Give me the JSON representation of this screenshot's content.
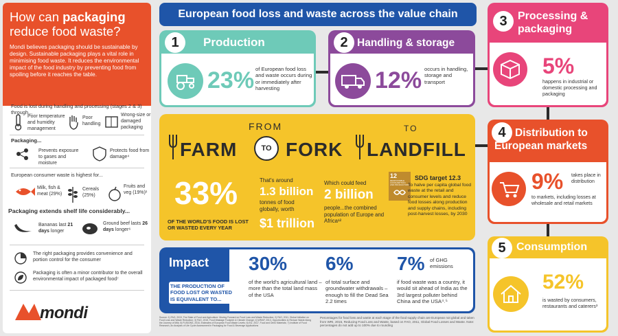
{
  "sidebar": {
    "title_pre": "How can ",
    "title_bold": "packaging",
    "title_post": "reduce food waste?",
    "intro": "Mondi believes packaging should be sustainable by design. Sustainable packaging plays a vital role in minimising food waste. It reduces the environmental impact of the food industry by preventing food from spoiling before it reaches the table.",
    "lost_heading": "Food is lost during handling and processing (stages 2 & 3) through...",
    "causes": [
      "Poor temperature and humidity management",
      "Poor handling",
      "Wrong-size or damaged packaging"
    ],
    "packaging_heading": "Packaging...",
    "packaging_items": [
      "Prevents exposure to gases and moisture",
      "Protects food from damage⁴"
    ],
    "consumer_heading": "European consumer waste is highest for...",
    "consumer_items": [
      "Milk, fish & meat (29%)",
      "Cereals (25%)",
      "Fruits and veg (19%)¹"
    ],
    "shelf_heading": "Packaging extends shelf life considerably...",
    "shelf_banana_pre": "Bananas last ",
    "shelf_banana_bold": "21 days",
    "shelf_banana_post": " longer",
    "shelf_beef_pre": "Ground beef lasts ",
    "shelf_beef_bold": "26 days",
    "shelf_beef_post": " longer⁶",
    "note1": "The right packaging provides convenience and portion control for the consumer",
    "note2": "Packaging is often a minor contributor to the overall environmental impact of packaged food⁷",
    "logo": "mondi"
  },
  "main_title": "European food loss and waste across the value chain",
  "stage1": {
    "num": "1",
    "title": "Production",
    "pct": "23%",
    "text": "of European food loss and waste occurs during or immediately after harvesting"
  },
  "stage2": {
    "num": "2",
    "title": "Handling & storage",
    "pct": "12%",
    "text": "occurs in handling, storage and transport"
  },
  "stage3": {
    "num": "3",
    "title": "Processing & packaging",
    "pct": "5%",
    "text": "happens in industrial or domestic processing and packaging"
  },
  "stage4": {
    "num": "4",
    "title": "Distribution to European markets",
    "pct": "9%",
    "text1": "takes place in distribution",
    "text2": "to markets, including losses at wholesale and retail markets"
  },
  "stage5": {
    "num": "5",
    "title": "Consumption",
    "pct": "52%",
    "text": "is wasted by consumers, restaurants and caterers³"
  },
  "farm": {
    "from": "FROM",
    "farm": "FARM",
    "to": "TO",
    "fork": "FORK",
    "to2": "TO",
    "landfill": "LANDFILL",
    "pct": "33%",
    "pct_caption": "OF THE WORLD'S FOOD IS LOST OR WASTED EVERY YEAR",
    "around": "That's around",
    "billion": "1.3 billion",
    "tonnes": "tonnes of food globally, worth",
    "trillion": "$1 trillion",
    "feed": "Which could feed",
    "feed_num": "2 billion",
    "feed_text": "people...the combined population of Europe and Africa¹²",
    "sdg_num": "12",
    "sdg_label": "RESPONSIBLE CONSUMPTION AND PRODUCTION",
    "sdg_title": "SDG target 12.3",
    "sdg_text": "To halve per capita global food waste at the retail and consumer levels and reduce food losses along production and supply chains, including post-harvest losses, by 2030"
  },
  "impact": {
    "title": "Impact",
    "lead": "THE PRODUCTION OF FOOD LOST OR WASTED IS EQUIVALENT TO...",
    "p1": "30%",
    "t1": "of the world's agricultural land – more than the total land mass of the USA",
    "p2": "6%",
    "t2": "of total surface and groundwater withdrawals – enough to fill the Dead Sea 2.2 times",
    "p3": "7%",
    "p3s": "of GHG emissions",
    "t3": "if food waste was a country, it would sit ahead of India as the 3rd largest polluter behind China and the USA⁴˒⁵"
  },
  "footer": {
    "source": "Source: 1) FAO, 2019, The State of Food and Agriculture: Moving Forward on Food Loss and Waste Reduction; 2) FAO, 2011, Global Initiative on Food Loss and Waste Reduction; 3) FAO, 2015, Food Wastage Footprint & Climate Change; 4) WRAP, 2013, Opportunities to Reduce Waste Along the Journey of Milk; 5) FUSIONS, 2016, Estimates of European Food Waste Levels; 6) EU, 2017, Food and Drink Materials; 7) Institute of Food Research, An Analysis of Life Cycle Assessment in Packaging for Food & Beverage Applications",
    "note": "Percentages for food loss and waste at each stage of the food supply chain are European not global and taken from WRI, 2015, Reducing Food Loss and Waste, based on FAO, 2011, Global Food Losses and Waste. Note: percentages do not add up to 100% due to rounding"
  },
  "colors": {
    "orange": "#e8512b",
    "blue": "#1f55a8",
    "teal": "#6ecab8",
    "purple": "#8c4a9b",
    "pink": "#e8457a",
    "yellow": "#f5c42a",
    "dark": "#2b2b2b"
  }
}
